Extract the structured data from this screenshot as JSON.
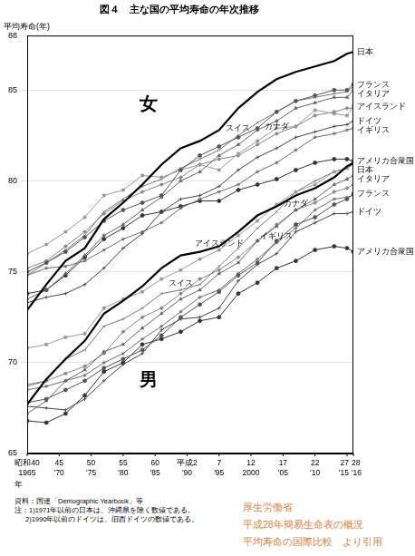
{
  "chart_data": {
    "type": "line",
    "title": "図４　主な国の平均寿命の年次推移",
    "y_label": "平均寿命(年)",
    "x_label": "年",
    "annotations": [
      "女",
      "男"
    ],
    "notes": [
      "資料：国連「Demographic Yearbook」等",
      "注：1)1971年以前の日本は、沖縄県を除く数値である。",
      "2)1990年以前のドイツは、旧西ドイツの数値である。"
    ],
    "credit": [
      "厚生労働省",
      "平成28年簡易生命表の概況",
      "平均寿命の国際比較　より引用"
    ],
    "x": [
      1965,
      1968,
      1971,
      1974,
      1977,
      1980,
      1983,
      1986,
      1989,
      1992,
      1995,
      1998,
      2001,
      2004,
      2007,
      2010,
      2013,
      2015,
      2016
    ],
    "xlim": [
      1965,
      2016
    ],
    "xticks": [
      {
        "value": 1965,
        "label": "昭和40\n1965"
      },
      {
        "value": 1970,
        "label": "45\n'70"
      },
      {
        "value": 1975,
        "label": "50\n'75"
      },
      {
        "value": 1980,
        "label": "55\n'80"
      },
      {
        "value": 1985,
        "label": "60\n'85"
      },
      {
        "value": 1990,
        "label": "平成2\n'90"
      },
      {
        "value": 1995,
        "label": "7\n'95"
      },
      {
        "value": 2000,
        "label": "12\n2000"
      },
      {
        "value": 2005,
        "label": "17\n'05"
      },
      {
        "value": 2010,
        "label": "22\n'10"
      },
      {
        "value": 2015,
        "label": "27\n'15"
      },
      {
        "value": 2016,
        "label": "28\n'16"
      }
    ],
    "ylim": [
      65,
      88
    ],
    "yticks": [
      65,
      70,
      75,
      80,
      85,
      88
    ],
    "grid": "y",
    "series": [
      {
        "name": "日本",
        "color": "#000000",
        "marker": "none",
        "line_style": "solid",
        "values": [
          72.9,
          74.3,
          75.6,
          76.3,
          77.9,
          78.8,
          79.8,
          80.9,
          81.8,
          82.2,
          82.8,
          84.0,
          84.9,
          85.6,
          86.0,
          86.3,
          86.6,
          87.0,
          87.1
        ]
      },
      {
        "name": "フランス",
        "color": "#555555",
        "marker": "circle",
        "line_style": "solid",
        "values": [
          75.0,
          75.5,
          76.1,
          76.9,
          77.8,
          78.4,
          78.8,
          79.2,
          80.6,
          81.4,
          81.9,
          82.4,
          82.9,
          83.8,
          84.4,
          84.7,
          85.0,
          85.0,
          85.3
        ]
      },
      {
        "name": "イタリア",
        "color": "#666666",
        "marker": "triangle",
        "line_style": "solid",
        "values": [
          73.5,
          74.0,
          74.9,
          75.9,
          77.0,
          77.6,
          78.4,
          79.1,
          80.0,
          80.5,
          81.4,
          82.0,
          82.8,
          83.3,
          84.0,
          84.3,
          84.6,
          84.6,
          85.0
        ]
      },
      {
        "name": "アイスランド",
        "color": "#999999",
        "marker": "rect",
        "line_style": "solid",
        "values": [
          76.0,
          76.5,
          77.2,
          78.0,
          79.2,
          79.5,
          80.3,
          80.2,
          80.6,
          80.9,
          80.6,
          81.5,
          82.2,
          82.9,
          83.0,
          83.9,
          83.7,
          83.6,
          84.1
        ]
      },
      {
        "name": "スイス",
        "color": "#777777",
        "marker": "crossRot",
        "line_style": "solid",
        "values": [
          74.8,
          75.5,
          76.2,
          77.0,
          78.3,
          79.0,
          79.7,
          80.1,
          80.7,
          81.2,
          81.7,
          82.5,
          83.2,
          83.8,
          84.4,
          84.6,
          84.8,
          84.9,
          85.2
        ]
      },
      {
        "name": "カナダ",
        "color": "#888888",
        "marker": "rectRot",
        "line_style": "solid",
        "values": [
          75.2,
          75.6,
          76.4,
          77.2,
          78.2,
          78.9,
          79.4,
          79.8,
          80.2,
          80.9,
          81.2,
          81.4,
          82.0,
          82.6,
          83.0,
          83.6,
          83.8,
          84.0,
          84.0
        ]
      },
      {
        "name": "ドイツ",
        "color": "#444444",
        "marker": "cross",
        "line_style": "solid",
        "values": [
          73.3,
          73.6,
          73.8,
          74.3,
          75.2,
          76.3,
          77.1,
          78.3,
          79.0,
          79.2,
          79.7,
          80.6,
          81.3,
          81.8,
          82.4,
          82.7,
          83.0,
          83.1,
          83.3
        ]
      },
      {
        "name": "イギリス",
        "color": "#6e6e6e",
        "marker": "star",
        "line_style": "solid",
        "values": [
          74.8,
          75.2,
          75.3,
          75.6,
          76.2,
          76.8,
          77.2,
          77.7,
          78.5,
          79.0,
          79.4,
          79.8,
          80.5,
          81.0,
          81.7,
          82.4,
          82.6,
          82.8,
          82.9
        ]
      },
      {
        "name": "アメリカ合衆国",
        "color": "#333333",
        "marker": "circle",
        "line_style": "solid",
        "values": [
          73.8,
          74.0,
          74.8,
          75.8,
          76.8,
          77.4,
          78.1,
          78.3,
          78.6,
          78.9,
          78.9,
          79.5,
          79.8,
          80.1,
          80.6,
          81.0,
          81.2,
          81.2,
          81.1
        ]
      },
      {
        "name": "日本",
        "color": "#000000",
        "marker": "none",
        "line_style": "solid",
        "values": [
          67.7,
          69.1,
          70.2,
          71.2,
          72.7,
          73.4,
          74.2,
          75.2,
          75.9,
          76.1,
          76.4,
          77.2,
          78.1,
          78.6,
          79.2,
          79.6,
          80.2,
          80.8,
          81.0
        ]
      },
      {
        "name": "フランス",
        "color": "#555555",
        "marker": "circle",
        "line_style": "solid",
        "values": [
          67.8,
          68.0,
          68.5,
          69.0,
          69.7,
          70.2,
          70.7,
          71.5,
          72.5,
          73.2,
          73.9,
          74.8,
          75.5,
          76.7,
          77.6,
          78.0,
          78.7,
          79.0,
          79.3
        ]
      },
      {
        "name": "イタリア",
        "color": "#666666",
        "marker": "triangle",
        "line_style": "solid",
        "values": [
          67.2,
          67.9,
          69.0,
          69.6,
          70.6,
          71.0,
          71.9,
          72.7,
          73.5,
          74.0,
          74.9,
          75.5,
          76.7,
          77.5,
          78.4,
          79.0,
          79.8,
          80.1,
          80.3
        ]
      },
      {
        "name": "アイスランド",
        "color": "#999999",
        "marker": "rect",
        "line_style": "solid",
        "values": [
          70.8,
          71.0,
          71.4,
          71.6,
          73.0,
          73.5,
          73.9,
          74.6,
          75.1,
          75.7,
          76.2,
          77.0,
          77.8,
          78.7,
          79.4,
          79.8,
          80.5,
          80.7,
          80.9
        ]
      },
      {
        "name": "スイス",
        "color": "#777777",
        "marker": "crossRot",
        "line_style": "solid",
        "values": [
          68.7,
          69.0,
          70.2,
          70.7,
          72.0,
          72.4,
          73.0,
          73.8,
          74.0,
          74.3,
          75.3,
          76.3,
          77.4,
          78.3,
          79.4,
          80.0,
          80.5,
          80.7,
          81.0
        ]
      },
      {
        "name": "カナダ",
        "color": "#888888",
        "marker": "rectRot",
        "line_style": "solid",
        "values": [
          68.8,
          69.0,
          69.4,
          69.8,
          70.5,
          71.7,
          72.5,
          73.0,
          73.8,
          74.6,
          75.1,
          75.8,
          76.7,
          77.6,
          78.4,
          78.8,
          79.4,
          79.6,
          79.8
        ]
      },
      {
        "name": "ドイツ",
        "color": "#444444",
        "marker": "cross",
        "line_style": "solid",
        "values": [
          67.6,
          67.5,
          67.4,
          68.0,
          69.0,
          69.9,
          70.5,
          71.8,
          72.4,
          72.5,
          73.0,
          74.5,
          75.4,
          76.0,
          77.2,
          77.7,
          78.2,
          78.2,
          78.3
        ]
      },
      {
        "name": "イギリス",
        "color": "#6e6e6e",
        "marker": "star",
        "line_style": "solid",
        "values": [
          68.5,
          68.7,
          69.0,
          69.3,
          70.0,
          70.5,
          71.3,
          72.0,
          72.8,
          73.6,
          74.0,
          74.9,
          75.7,
          76.6,
          77.4,
          78.4,
          79.0,
          79.1,
          79.2
        ]
      },
      {
        "name": "アメリカ合衆国",
        "color": "#333333",
        "marker": "circle",
        "line_style": "solid",
        "values": [
          66.8,
          66.7,
          67.2,
          68.2,
          69.5,
          70.0,
          71.0,
          71.3,
          71.7,
          72.3,
          72.5,
          73.8,
          74.4,
          75.2,
          75.6,
          76.2,
          76.4,
          76.3,
          76.1
        ]
      }
    ]
  }
}
